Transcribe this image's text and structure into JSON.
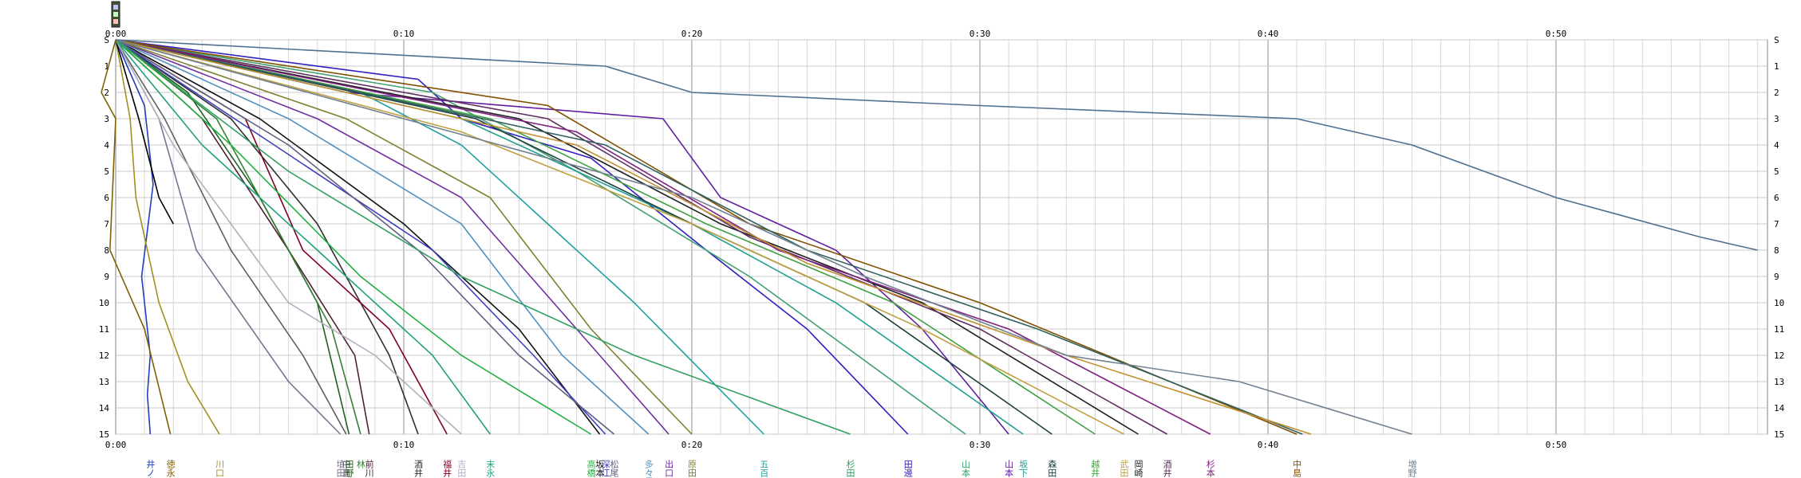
{
  "chart_data": {
    "type": "line",
    "title": "",
    "xlabel": "",
    "ylabel": "",
    "x_unit": "minutes",
    "xlim": [
      0,
      58
    ],
    "ylim": [
      0,
      15
    ],
    "x_ticks": [
      {
        "v": 0,
        "label": "0:00"
      },
      {
        "v": 10,
        "label": "0:10"
      },
      {
        "v": 20,
        "label": "0:20"
      },
      {
        "v": 30,
        "label": "0:30"
      },
      {
        "v": 40,
        "label": "0:40"
      },
      {
        "v": 50,
        "label": "0:50"
      }
    ],
    "stations": [
      "S",
      "1",
      "2",
      "3",
      "4",
      "5",
      "6",
      "7",
      "8",
      "9",
      "10",
      "11",
      "12",
      "13",
      "14",
      "15"
    ],
    "grid": true,
    "legend": "bottom",
    "series": [
      {
        "name": "井ノ上",
        "color": "#1f3fbf",
        "points": [
          [
            0,
            0
          ],
          [
            1.0,
            2.5
          ],
          [
            1.3,
            5.5
          ],
          [
            0.9,
            9
          ],
          [
            1.2,
            12
          ],
          [
            1.1,
            13.5
          ],
          [
            1.2,
            15
          ]
        ]
      },
      {
        "name": "徳永",
        "color": "#806000",
        "points": [
          [
            0,
            0
          ],
          [
            -0.5,
            2
          ],
          [
            0,
            3
          ],
          [
            -0.2,
            8
          ],
          [
            1.0,
            11
          ],
          [
            1.9,
            15
          ]
        ]
      },
      {
        "name": "川口",
        "color": "#a09020",
        "points": [
          [
            0,
            0
          ],
          [
            0.5,
            3
          ],
          [
            0.7,
            6
          ],
          [
            1.5,
            10
          ],
          [
            2.5,
            13
          ],
          [
            3.6,
            15
          ]
        ]
      },
      {
        "name": "",
        "color": "#000000",
        "points": [
          [
            0,
            0
          ],
          [
            0.8,
            3
          ],
          [
            1.5,
            6
          ],
          [
            2.0,
            7
          ]
        ]
      },
      {
        "name": "埴田",
        "color": "#807090",
        "points": [
          [
            0,
            0
          ],
          [
            1.5,
            3
          ],
          [
            2.8,
            8
          ],
          [
            6.0,
            13
          ],
          [
            7.8,
            15
          ]
        ]
      },
      {
        "name": "中島",
        "color": "#606060",
        "points": [
          [
            0,
            0
          ],
          [
            1.7,
            3
          ],
          [
            4.0,
            8
          ],
          [
            6.5,
            12
          ],
          [
            8.0,
            15
          ]
        ]
      },
      {
        "name": "田野",
        "color": "#206020",
        "points": [
          [
            0,
            0
          ],
          [
            2.5,
            2
          ],
          [
            5.0,
            6
          ],
          [
            7.0,
            10
          ],
          [
            8.1,
            15
          ]
        ]
      },
      {
        "name": "前川",
        "color": "#502030",
        "points": [
          [
            0,
            0
          ],
          [
            3.0,
            3
          ],
          [
            6.0,
            8
          ],
          [
            8.3,
            12
          ],
          [
            8.8,
            15
          ]
        ]
      },
      {
        "name": "林",
        "color": "#308030",
        "points": [
          [
            0,
            0
          ],
          [
            3.5,
            3
          ],
          [
            5.5,
            7
          ],
          [
            7.5,
            11
          ],
          [
            8.5,
            15
          ]
        ]
      },
      {
        "name": "酒井",
        "color": "#303030",
        "points": [
          [
            0,
            0
          ],
          [
            4.0,
            3
          ],
          [
            7.0,
            7
          ],
          [
            9.5,
            12
          ],
          [
            10.5,
            15
          ]
        ]
      },
      {
        "name": "福井",
        "color": "#800020",
        "points": [
          [
            0,
            0
          ],
          [
            4.5,
            3
          ],
          [
            6.5,
            8
          ],
          [
            9.5,
            11
          ],
          [
            11.5,
            15
          ]
        ]
      },
      {
        "name": "吉田",
        "color": "#b0b0c0",
        "points": [
          [
            0,
            0
          ],
          [
            2.0,
            4
          ],
          [
            6.0,
            10
          ],
          [
            9.0,
            12
          ],
          [
            12.0,
            15
          ]
        ]
      },
      {
        "name": "末永",
        "color": "#20a080",
        "points": [
          [
            0,
            0
          ],
          [
            3.0,
            4
          ],
          [
            7.0,
            8
          ],
          [
            11.0,
            12
          ],
          [
            13.0,
            15
          ]
        ]
      },
      {
        "name": "高橋",
        "color": "#20b040",
        "points": [
          [
            0,
            0
          ],
          [
            4.0,
            4
          ],
          [
            8.5,
            9
          ],
          [
            12.0,
            12
          ],
          [
            16.5,
            15
          ]
        ]
      },
      {
        "name": "坂本",
        "color": "#101010",
        "points": [
          [
            0,
            0
          ],
          [
            5.0,
            3
          ],
          [
            10.0,
            7
          ],
          [
            14.0,
            11
          ],
          [
            16.8,
            15
          ]
        ]
      },
      {
        "name": "深江",
        "color": "#4040c0",
        "points": [
          [
            0,
            0
          ],
          [
            5.5,
            4
          ],
          [
            11.0,
            8
          ],
          [
            14.5,
            12
          ],
          [
            17.0,
            15
          ]
        ]
      },
      {
        "name": "松尾",
        "color": "#606080",
        "points": [
          [
            0,
            0
          ],
          [
            6.0,
            4
          ],
          [
            10.5,
            8
          ],
          [
            14.0,
            12
          ],
          [
            17.3,
            15
          ]
        ]
      },
      {
        "name": "多々見",
        "color": "#5090c0",
        "points": [
          [
            0,
            0
          ],
          [
            6.0,
            3
          ],
          [
            12.0,
            7
          ],
          [
            15.5,
            12
          ],
          [
            18.5,
            15
          ]
        ]
      },
      {
        "name": "出口",
        "color": "#7030a0",
        "points": [
          [
            0,
            0
          ],
          [
            7.0,
            3
          ],
          [
            12.0,
            6
          ],
          [
            16.0,
            11
          ],
          [
            19.2,
            15
          ]
        ]
      },
      {
        "name": "原田",
        "color": "#808030",
        "points": [
          [
            0,
            0
          ],
          [
            8.0,
            3
          ],
          [
            13.0,
            6
          ],
          [
            16.5,
            11
          ],
          [
            20.0,
            15
          ]
        ]
      },
      {
        "name": "五百田",
        "color": "#20a0a0",
        "points": [
          [
            0,
            0
          ],
          [
            8.5,
            2
          ],
          [
            12.0,
            4
          ],
          [
            15.0,
            7
          ],
          [
            18.0,
            10
          ],
          [
            22.5,
            15
          ]
        ]
      },
      {
        "name": "杉田",
        "color": "#30a060",
        "points": [
          [
            0,
            0
          ],
          [
            6.0,
            5
          ],
          [
            12.0,
            9
          ],
          [
            18.0,
            12
          ],
          [
            25.5,
            15
          ]
        ]
      },
      {
        "name": "田邊",
        "color": "#3020c0",
        "points": [
          [
            0,
            0
          ],
          [
            10.5,
            1.5
          ],
          [
            12.0,
            3
          ],
          [
            16.5,
            4.5
          ],
          [
            20.5,
            8
          ],
          [
            24.0,
            11
          ],
          [
            27.5,
            15
          ]
        ]
      },
      {
        "name": "山本",
        "color": "#40a070",
        "points": [
          [
            0,
            0
          ],
          [
            11.0,
            2
          ],
          [
            16.0,
            5
          ],
          [
            22.0,
            9
          ],
          [
            29.5,
            15
          ]
        ]
      },
      {
        "name": "山本",
        "color": "#6020a0",
        "points": [
          [
            0,
            0
          ],
          [
            8.0,
            2
          ],
          [
            19.0,
            3
          ],
          [
            21.0,
            6
          ],
          [
            25.0,
            8
          ],
          [
            28.0,
            11
          ],
          [
            31.0,
            15
          ]
        ]
      },
      {
        "name": "坂下",
        "color": "#20a090",
        "points": [
          [
            0,
            0
          ],
          [
            12.0,
            3
          ],
          [
            20.0,
            7
          ],
          [
            25.0,
            10
          ],
          [
            31.5,
            15
          ]
        ]
      },
      {
        "name": "森田",
        "color": "#204040",
        "points": [
          [
            0,
            0
          ],
          [
            12.5,
            3
          ],
          [
            20.0,
            7
          ],
          [
            26.0,
            10
          ],
          [
            32.5,
            15
          ]
        ]
      },
      {
        "name": "越井",
        "color": "#40a040",
        "points": [
          [
            0,
            0
          ],
          [
            13.0,
            3
          ],
          [
            20.5,
            7
          ],
          [
            27.0,
            10
          ],
          [
            34.0,
            15
          ]
        ]
      },
      {
        "name": "武田",
        "color": "#c0a040",
        "points": [
          [
            0,
            0
          ],
          [
            12.0,
            3.5
          ],
          [
            20.0,
            7
          ],
          [
            28.0,
            11
          ],
          [
            35.0,
            15
          ]
        ]
      },
      {
        "name": "岡崎",
        "color": "#202020",
        "points": [
          [
            0,
            0
          ],
          [
            14.0,
            3
          ],
          [
            21.0,
            7
          ],
          [
            28.0,
            10
          ],
          [
            35.5,
            15
          ]
        ]
      },
      {
        "name": "酒井",
        "color": "#603060",
        "points": [
          [
            0,
            0
          ],
          [
            15.0,
            3
          ],
          [
            22.0,
            7.5
          ],
          [
            30.0,
            11
          ],
          [
            36.5,
            15
          ]
        ]
      },
      {
        "name": "杉本",
        "color": "#802080",
        "points": [
          [
            0,
            0
          ],
          [
            16.0,
            3.5
          ],
          [
            23.0,
            8
          ],
          [
            31.0,
            11
          ],
          [
            38.0,
            15
          ]
        ]
      },
      {
        "name": "中島",
        "color": "#805000",
        "points": [
          [
            0,
            0
          ],
          [
            15.0,
            2.5
          ],
          [
            22.0,
            7
          ],
          [
            30.0,
            10
          ],
          [
            41.0,
            15
          ]
        ]
      },
      {
        "name": "",
        "color": "#306060",
        "points": [
          [
            0,
            0
          ],
          [
            17.0,
            4
          ],
          [
            24.0,
            8
          ],
          [
            32.0,
            11
          ],
          [
            41.2,
            15
          ]
        ]
      },
      {
        "name": "",
        "color": "#c09030",
        "points": [
          [
            0,
            0
          ],
          [
            16.0,
            4
          ],
          [
            24.0,
            8.5
          ],
          [
            33.0,
            12
          ],
          [
            41.5,
            15
          ]
        ]
      },
      {
        "name": "増野",
        "color": "#708090",
        "points": [
          [
            0,
            0
          ],
          [
            20.0,
            6
          ],
          [
            26.0,
            9
          ],
          [
            33.0,
            12
          ],
          [
            39.0,
            13
          ],
          [
            45.0,
            15
          ]
        ]
      },
      {
        "name": "",
        "color": "#507090",
        "points": [
          [
            0,
            0
          ],
          [
            17.0,
            1
          ],
          [
            20.0,
            2
          ],
          [
            30.0,
            2.5
          ],
          [
            41.0,
            3
          ],
          [
            45.0,
            4
          ],
          [
            50.0,
            6
          ],
          [
            55.0,
            7.5
          ],
          [
            57.0,
            8
          ]
        ]
      }
    ]
  }
}
